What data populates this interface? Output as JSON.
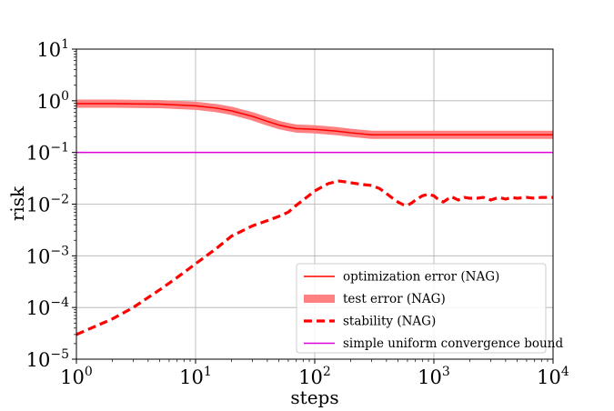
{
  "chart_data": {
    "type": "line",
    "title": "",
    "xlabel": "steps",
    "ylabel": "risk",
    "xscale": "log",
    "yscale": "log",
    "xlim": [
      1,
      10000
    ],
    "ylim": [
      1e-05,
      10
    ],
    "grid": true,
    "legend_position": "lower-right",
    "x_ticks": [
      {
        "base": "10",
        "exp": "0",
        "value": 1
      },
      {
        "base": "10",
        "exp": "1",
        "value": 10
      },
      {
        "base": "10",
        "exp": "2",
        "value": 100
      },
      {
        "base": "10",
        "exp": "3",
        "value": 1000
      },
      {
        "base": "10",
        "exp": "4",
        "value": 10000
      }
    ],
    "y_ticks": [
      {
        "base": "10",
        "exp": "1",
        "value": 10
      },
      {
        "base": "10",
        "exp": "0",
        "value": 1
      },
      {
        "base": "10",
        "exp": "−1",
        "value": 0.1
      },
      {
        "base": "10",
        "exp": "−2",
        "value": 0.01
      },
      {
        "base": "10",
        "exp": "−3",
        "value": 0.001
      },
      {
        "base": "10",
        "exp": "−4",
        "value": 0.0001
      },
      {
        "base": "10",
        "exp": "−5",
        "value": 1e-05
      }
    ],
    "series": [
      {
        "name": "optimization error (NAG)",
        "color": "#ff0000",
        "style": "solid-thin",
        "x": [
          1,
          2,
          3,
          5,
          8,
          10,
          15,
          20,
          30,
          40,
          50,
          60,
          70,
          100,
          150,
          200,
          300,
          500,
          1000,
          3000,
          10000
        ],
        "y": [
          0.88,
          0.88,
          0.87,
          0.86,
          0.82,
          0.8,
          0.72,
          0.64,
          0.5,
          0.4,
          0.34,
          0.31,
          0.29,
          0.28,
          0.26,
          0.24,
          0.22,
          0.22,
          0.22,
          0.22,
          0.22
        ]
      },
      {
        "name": "test error (NAG)",
        "color": "#ff8080",
        "style": "solid-thick",
        "x": [
          1,
          2,
          3,
          5,
          8,
          10,
          15,
          20,
          30,
          40,
          50,
          60,
          70,
          100,
          150,
          200,
          300,
          500,
          1000,
          3000,
          10000
        ],
        "y": [
          0.88,
          0.88,
          0.87,
          0.86,
          0.82,
          0.8,
          0.72,
          0.64,
          0.5,
          0.4,
          0.34,
          0.31,
          0.29,
          0.28,
          0.26,
          0.24,
          0.22,
          0.22,
          0.22,
          0.22,
          0.22
        ]
      },
      {
        "name": "stability (NAG)",
        "color": "#ff0000",
        "style": "dashed",
        "x": [
          1,
          1.5,
          2,
          3,
          5,
          7,
          10,
          15,
          20,
          30,
          40,
          50,
          60,
          70,
          80,
          100,
          130,
          160,
          200,
          250,
          300,
          350,
          400,
          450,
          500,
          550,
          600,
          650,
          700,
          800,
          900,
          1000,
          1100,
          1200,
          1400,
          1600,
          1800,
          2000,
          2300,
          2600,
          3000,
          3500,
          4000,
          4500,
          5000,
          6000,
          7000,
          8000,
          10000
        ],
        "y": [
          3e-05,
          4.5e-05,
          6e-05,
          0.0001,
          0.00022,
          0.00038,
          0.0007,
          0.0014,
          0.0024,
          0.0038,
          0.0048,
          0.0058,
          0.007,
          0.0095,
          0.012,
          0.018,
          0.025,
          0.028,
          0.026,
          0.024,
          0.023,
          0.02,
          0.016,
          0.013,
          0.011,
          0.0098,
          0.0095,
          0.0105,
          0.012,
          0.0145,
          0.0155,
          0.0145,
          0.012,
          0.011,
          0.014,
          0.012,
          0.0135,
          0.013,
          0.013,
          0.0135,
          0.012,
          0.0135,
          0.0125,
          0.0135,
          0.013,
          0.0135,
          0.013,
          0.0135,
          0.0135
        ]
      },
      {
        "name": "simple uniform convergence bound",
        "color": "#dd00dd",
        "style": "solid-thin",
        "x": [
          1,
          10000
        ],
        "y": [
          0.1,
          0.1
        ]
      }
    ]
  }
}
